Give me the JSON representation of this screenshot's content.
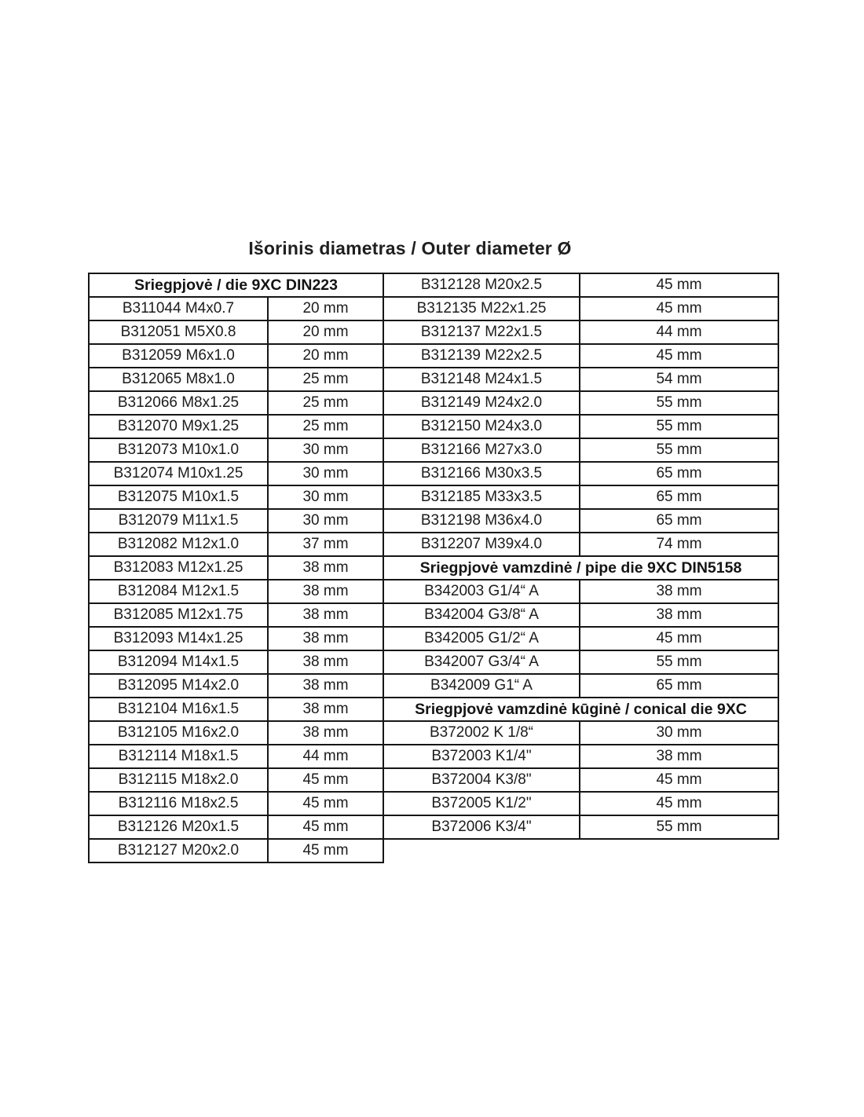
{
  "page": {
    "title": "Išorinis diametras / Outer diameter Ø"
  },
  "left_table": {
    "header": "Sriegpjovė / die 9XC DIN223",
    "rows": [
      {
        "code": "B311044 M4x0.7",
        "size": "20 mm"
      },
      {
        "code": "B312051 M5X0.8",
        "size": "20 mm"
      },
      {
        "code": "B312059 M6x1.0",
        "size": "20 mm"
      },
      {
        "code": "B312065 M8x1.0",
        "size": "25 mm"
      },
      {
        "code": "B312066 M8x1.25",
        "size": "25 mm"
      },
      {
        "code": "B312070 M9x1.25",
        "size": "25 mm"
      },
      {
        "code": "B312073 M10x1.0",
        "size": "30 mm"
      },
      {
        "code": "B312074 M10x1.25",
        "size": "30 mm"
      },
      {
        "code": "B312075 M10x1.5",
        "size": "30 mm"
      },
      {
        "code": "B312079 M11x1.5",
        "size": "30 mm"
      },
      {
        "code": "B312082 M12x1.0",
        "size": "37 mm"
      },
      {
        "code": "B312083 M12x1.25",
        "size": "38 mm"
      },
      {
        "code": "B312084 M12x1.5",
        "size": "38 mm"
      },
      {
        "code": "B312085 M12x1.75",
        "size": "38 mm"
      },
      {
        "code": "B312093 M14x1.25",
        "size": "38 mm"
      },
      {
        "code": "B312094 M14x1.5",
        "size": "38 mm"
      },
      {
        "code": "B312095 M14x2.0",
        "size": "38 mm"
      },
      {
        "code": "B312104 M16x1.5",
        "size": "38 mm"
      },
      {
        "code": "B312105 M16x2.0",
        "size": "38 mm"
      },
      {
        "code": "B312114 M18x1.5",
        "size": "44 mm"
      },
      {
        "code": "B312115 M18x2.0",
        "size": "45 mm"
      },
      {
        "code": "B312116 M18x2.5",
        "size": "45 mm"
      },
      {
        "code": "B312126 M20x1.5",
        "size": "45 mm"
      },
      {
        "code": "B312127 M20x2.0",
        "size": "45 mm"
      }
    ]
  },
  "right_table": {
    "items": [
      {
        "code": "B312128 M20x2.5",
        "size": "45 mm"
      },
      {
        "code": "B312135 M22x1.25",
        "size": "45 mm"
      },
      {
        "code": "B312137 M22x1.5",
        "size": "44 mm"
      },
      {
        "code": "B312139 M22x2.5",
        "size": "45 mm"
      },
      {
        "code": "B312148 M24x1.5",
        "size": "54 mm"
      },
      {
        "code": "B312149 M24x2.0",
        "size": "55 mm"
      },
      {
        "code": "B312150 M24x3.0",
        "size": "55 mm"
      },
      {
        "code": "B312166 M27x3.0",
        "size": "55 mm"
      },
      {
        "code": "B312166 M30x3.5",
        "size": "65 mm"
      },
      {
        "code": "B312185 M33x3.5",
        "size": "65 mm"
      },
      {
        "code": "B312198 M36x4.0",
        "size": "65 mm"
      },
      {
        "code": "B312207 M39x4.0",
        "size": "74 mm"
      },
      {
        "header": "Sriegpjovė vamzdinė / pipe die 9XC DIN5158"
      },
      {
        "code": "B342003 G1/4“ A",
        "size": "38 mm"
      },
      {
        "code": "B342004 G3/8“ A",
        "size": "38 mm"
      },
      {
        "code": "B342005 G1/2“ A",
        "size": "45 mm"
      },
      {
        "code": "B342007 G3/4“ A",
        "size": "55 mm"
      },
      {
        "code": "B342009 G1“ A",
        "size": "65 mm"
      },
      {
        "header": "Sriegpjovė vamzdinė kūginė / conical die 9XC"
      },
      {
        "code": "B372002 K 1/8“",
        "size": "30 mm"
      },
      {
        "code": "B372003 K1/4\"",
        "size": "38 mm"
      },
      {
        "code": "B372004 K3/8\"",
        "size": "45 mm"
      },
      {
        "code": "B372005 K1/2\"",
        "size": "45 mm"
      },
      {
        "code": "B372006 K3/4\"",
        "size": "55 mm"
      }
    ]
  },
  "layout_colors": {
    "border": "#161616",
    "text": "#1c1c1c",
    "background": "#ffffff"
  }
}
